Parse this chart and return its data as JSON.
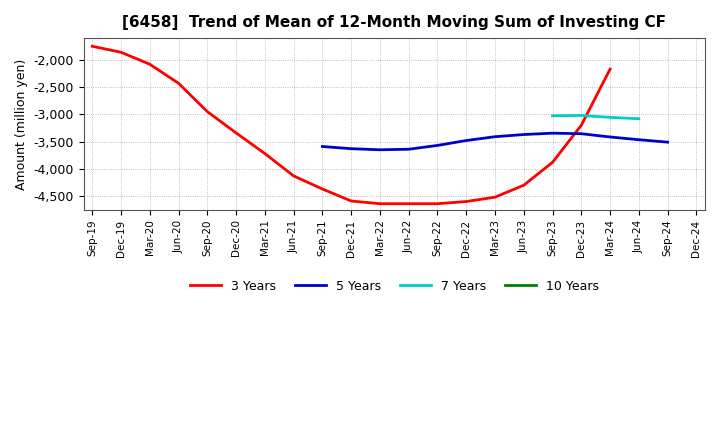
{
  "title": "[6458]  Trend of Mean of 12-Month Moving Sum of Investing CF",
  "ylabel": "Amount (million yen)",
  "background_color": "#ffffff",
  "plot_bg_color": "#ffffff",
  "grid_color": "#aaaaaa",
  "ylim": [
    -4750,
    -1600
  ],
  "yticks": [
    -4500,
    -4000,
    -3500,
    -3000,
    -2500,
    -2000
  ],
  "x_labels": [
    "Sep-19",
    "Dec-19",
    "Mar-20",
    "Jun-20",
    "Sep-20",
    "Dec-20",
    "Mar-21",
    "Jun-21",
    "Sep-21",
    "Dec-21",
    "Mar-22",
    "Jun-22",
    "Sep-22",
    "Dec-22",
    "Mar-23",
    "Jun-23",
    "Sep-23",
    "Dec-23",
    "Mar-24",
    "Jun-24",
    "Sep-24",
    "Dec-24"
  ],
  "series_3y": {
    "color": "#ff0000",
    "label": "3 Years",
    "x": [
      0,
      1,
      2,
      3,
      4,
      5,
      6,
      7,
      8,
      9,
      10,
      11,
      12,
      13,
      14,
      15,
      16,
      17,
      18
    ],
    "y": [
      -1750,
      -1860,
      -2080,
      -2430,
      -2950,
      -3340,
      -3720,
      -4130,
      -4370,
      -4590,
      -4640,
      -4640,
      -4640,
      -4600,
      -4520,
      -4300,
      -3880,
      -3200,
      -2170
    ]
  },
  "series_5y": {
    "color": "#0000cc",
    "label": "5 Years",
    "x": [
      8,
      9,
      10,
      11,
      12,
      13,
      14,
      15,
      16,
      17,
      18,
      19,
      20
    ],
    "y": [
      -3590,
      -3630,
      -3650,
      -3640,
      -3570,
      -3480,
      -3410,
      -3370,
      -3345,
      -3355,
      -3415,
      -3465,
      -3510
    ]
  },
  "series_7y": {
    "color": "#00cccc",
    "label": "7 Years",
    "x": [
      16,
      17,
      18,
      19
    ],
    "y": [
      -3025,
      -3020,
      -3055,
      -3080
    ]
  },
  "series_10y": {
    "color": "#008000",
    "label": "10 Years",
    "x": [],
    "y": []
  },
  "legend_entries": [
    "3 Years",
    "5 Years",
    "7 Years",
    "10 Years"
  ],
  "legend_colors": [
    "#ff0000",
    "#0000cc",
    "#00cccc",
    "#008000"
  ]
}
